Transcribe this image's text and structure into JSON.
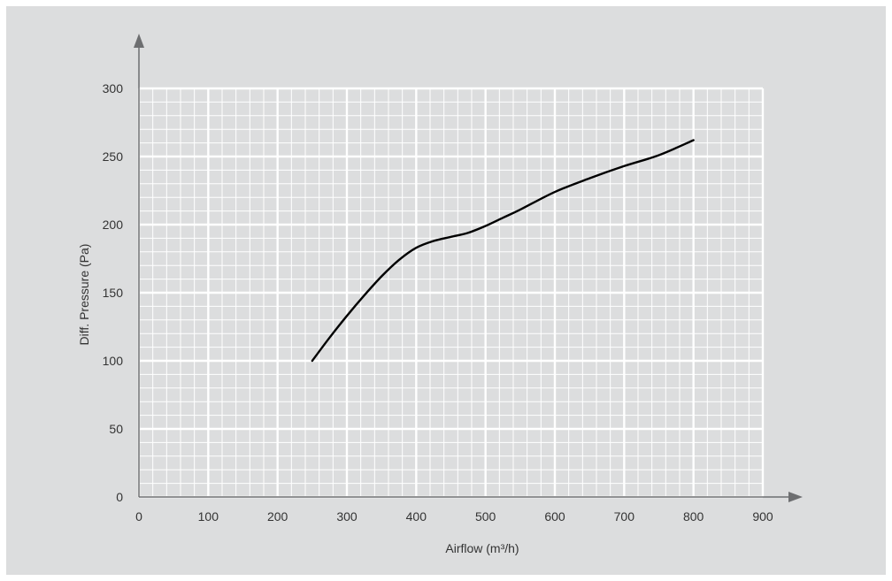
{
  "chart_data": {
    "type": "line",
    "xlabel": "Airflow (m³/h)",
    "ylabel": "Diff. Pressure (Pa)",
    "xlim": [
      0,
      900
    ],
    "ylim": [
      0,
      300
    ],
    "x_ticks": [
      0,
      100,
      200,
      300,
      400,
      500,
      600,
      700,
      800,
      900
    ],
    "y_ticks": [
      0,
      50,
      100,
      150,
      200,
      250,
      300
    ],
    "x_tick_labels": [
      "0",
      "100",
      "200",
      "300",
      "400",
      "500",
      "600",
      "700",
      "800",
      "900"
    ],
    "y_tick_labels": [
      "0",
      "50",
      "100",
      "150",
      "200",
      "250",
      "300"
    ],
    "x_minor_step": 20,
    "y_minor_step": 10,
    "grid": true,
    "series": [
      {
        "x": [
          250,
          275,
          300,
          325,
          350,
          375,
          400,
          425,
          450,
          475,
          500,
          525,
          550,
          600,
          650,
          700,
          750,
          800
        ],
        "y": [
          100,
          117,
          133,
          148,
          162,
          174,
          183,
          188,
          191,
          194,
          199,
          205,
          211,
          224,
          234,
          243,
          251,
          262
        ]
      }
    ],
    "colors": {
      "background": "#dcddde",
      "plot_background": "#dcddde",
      "grid": "#ffffff",
      "axis": "#6d6e70",
      "line": "#000000",
      "text": "#333333"
    }
  }
}
